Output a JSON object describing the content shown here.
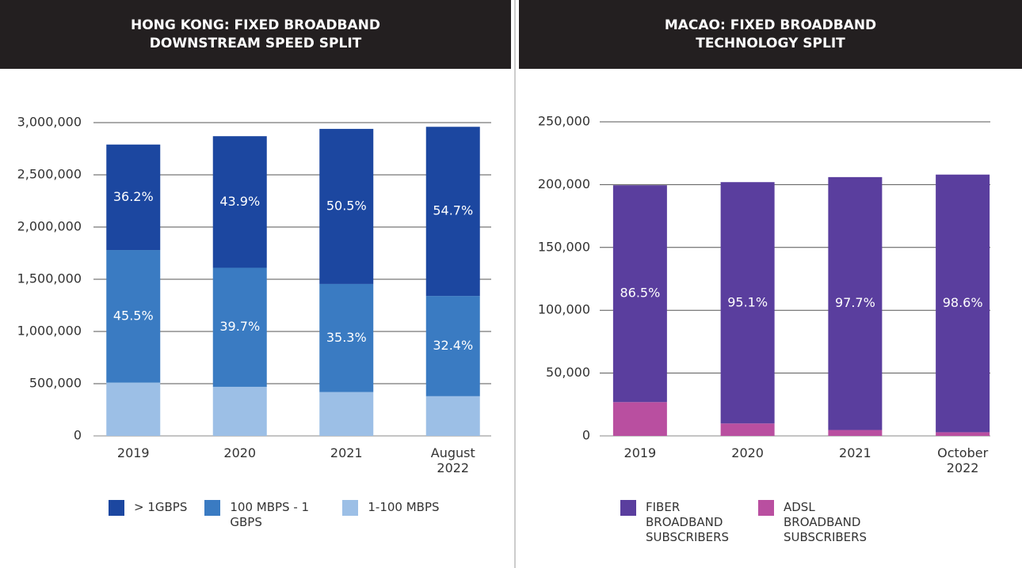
{
  "chart_data": [
    {
      "type": "bar",
      "stacked": true,
      "title": "HONG KONG: FIXED BROADBAND DOWNSTREAM SPEED SPLIT",
      "categories": [
        "2019",
        "2020",
        "2021",
        "August 2022"
      ],
      "series": [
        {
          "name": "1-100 MBPS",
          "color": "#9cbfe6",
          "values": [
            510000,
            470000,
            420000,
            380000
          ]
        },
        {
          "name": "100 MBPS - 1 GBPS",
          "color": "#3a7bc2",
          "values": [
            1270000,
            1140000,
            1035000,
            960000
          ],
          "share_labels": [
            "45.5%",
            "39.7%",
            "35.3%",
            "32.4%"
          ]
        },
        {
          "name": "> 1GBPS",
          "color": "#1c47a0",
          "values": [
            1010000,
            1260000,
            1485000,
            1620000
          ],
          "share_labels": [
            "36.2%",
            "43.9%",
            "50.5%",
            "54.7%"
          ]
        }
      ],
      "legend_order": [
        2,
        1,
        0
      ],
      "ylim": [
        0,
        3000000
      ],
      "yticks": [
        0,
        {
          "value": 500000,
          "label": "500,000"
        },
        {
          "value": 1000000,
          "label": "1,000,000"
        },
        {
          "value": 1500000,
          "label": "1,500,000"
        },
        {
          "value": 2000000,
          "label": "2,000,000"
        },
        {
          "value": 2500000,
          "label": "2,500,000"
        },
        {
          "value": 3000000,
          "label": "3,000,000"
        }
      ],
      "grid": true,
      "legend": "bottom"
    },
    {
      "type": "bar",
      "stacked": true,
      "title": "MACAO: FIXED BROADBAND TECHNOLOGY SPLIT",
      "categories": [
        "2019",
        "2020",
        "2021",
        "October 2022"
      ],
      "series": [
        {
          "name": "ADSL BROADBAND SUBSCRIBERS",
          "color": "#b94fa0",
          "values": [
            26900,
            9900,
            4700,
            2900
          ]
        },
        {
          "name": "FIBER BROADBAND SUBSCRIBERS",
          "color": "#5a3e9e",
          "values": [
            172600,
            192100,
            201300,
            205100
          ],
          "share_labels": [
            "86.5%",
            "95.1%",
            "97.7%",
            "98.6%"
          ]
        }
      ],
      "legend_order": [
        1,
        0
      ],
      "ylim": [
        0,
        250000
      ],
      "yticks": [
        0,
        {
          "value": 50000,
          "label": "50,000"
        },
        {
          "value": 100000,
          "label": "100,000"
        },
        {
          "value": 150000,
          "label": "150,000"
        },
        {
          "value": 200000,
          "label": "200,000"
        },
        {
          "value": 250000,
          "label": "250,000"
        }
      ],
      "grid": true,
      "legend": "bottom"
    }
  ]
}
